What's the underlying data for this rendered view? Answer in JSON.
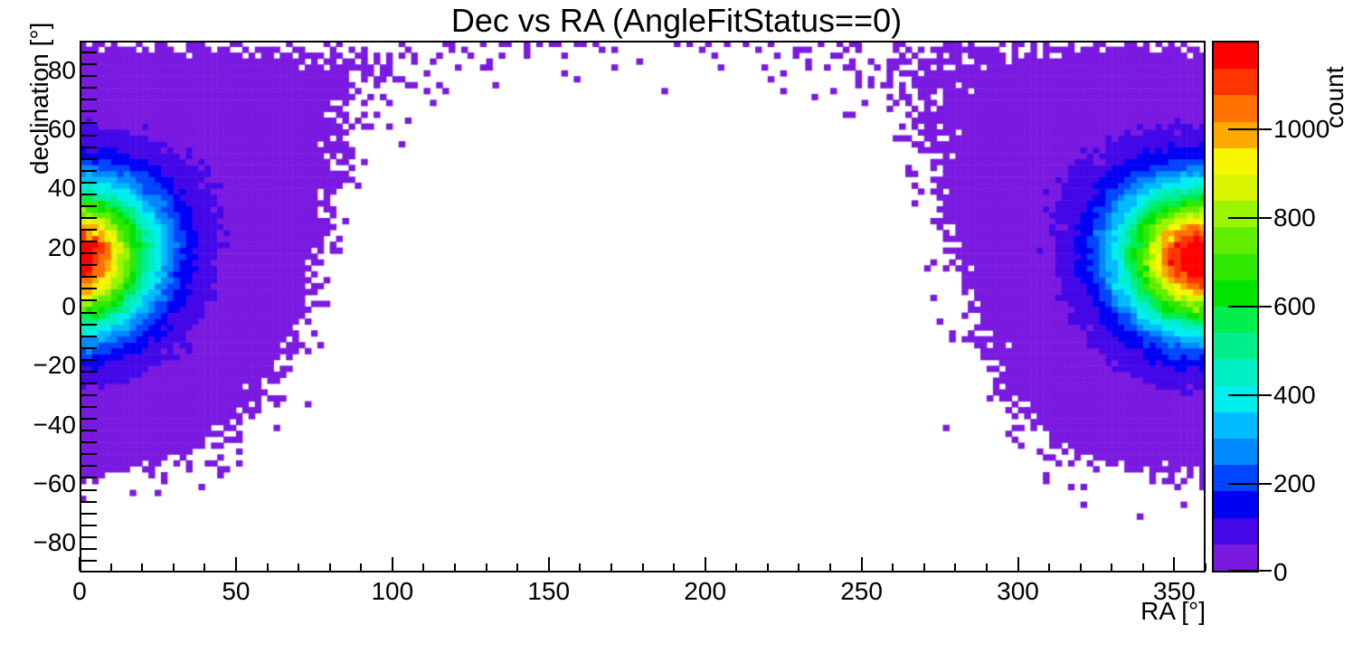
{
  "title": "Dec vs RA (AngleFitStatus==0)",
  "chart_data": {
    "type": "heatmap",
    "title": "Dec vs RA (AngleFitStatus==0)",
    "xlabel": "RA [°]",
    "ylabel": "declination [°]",
    "zlabel": "count",
    "x_range": [
      0,
      360
    ],
    "y_range": [
      -90,
      90
    ],
    "z_range": [
      0,
      1200
    ],
    "x_ticks": [
      0,
      50,
      100,
      150,
      200,
      250,
      300,
      350
    ],
    "x_minor_step": 10,
    "x_major_step": 50,
    "y_ticks": [
      -80,
      -60,
      -40,
      -20,
      0,
      20,
      40,
      60,
      80
    ],
    "y_minor_step": 4,
    "y_major_step": 20,
    "z_ticks": [
      0,
      200,
      400,
      600,
      800,
      1000
    ],
    "n_color_levels": 20,
    "grid": false,
    "palette": [
      "#7A1AE0",
      "#4408E8",
      "#0000F5",
      "#0045FF",
      "#0088FF",
      "#00BBFF",
      "#00EEEE",
      "#00EEC6",
      "#00EE8C",
      "#00EE4F",
      "#00E400",
      "#2FE900",
      "#61EE00",
      "#9BF400",
      "#D9F600",
      "#F7F500",
      "#FFA800",
      "#FF7100",
      "#FF3500",
      "#FF0000"
    ],
    "bin_size_deg": 2,
    "distribution": {
      "description": "Single broad source centered near RA 358 deg, Dec +16.5 deg, wrapping across RA=0/360; counts fall as a Gaussian of angular distance on the sphere over a flat background, with a soft rim cutoff near 64 deg angular distance, Poisson-sparse purple fringe, slight thinning at the north-pole rows, and an empty antipodal region in the middle of the plot",
      "center_ra_deg": 358,
      "center_dec_deg": 16.5,
      "sigma_deg": 16.5,
      "peak_count": 1205,
      "background_count": 30,
      "cutoff_theta_deg": 63.5,
      "cutoff_softness_deg": 3.0,
      "polar_thinning": {
        "start_dec_deg": 85,
        "softness_deg": 2.5,
        "max_fraction": 0.75
      },
      "noise": "poisson",
      "seed": 7
    }
  }
}
